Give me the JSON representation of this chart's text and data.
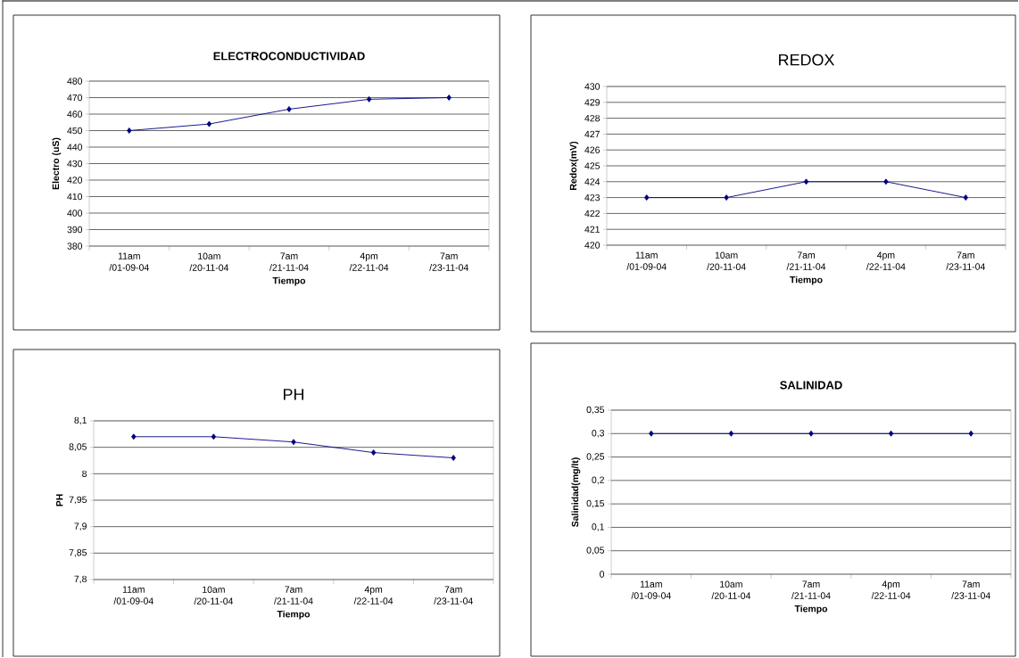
{
  "chart_data": [
    {
      "type": "line",
      "title": "ELECTROCONDUCTIVIDAD",
      "xlabel": "Tiempo",
      "ylabel": "Electro (uS)",
      "categories": [
        "11am /01-09-04",
        "10am /20-11-04",
        "7am /21-11-04",
        "4pm /22-11-04",
        "7am /23-11-04"
      ],
      "series": [
        {
          "color": "#000080",
          "values": [
            450,
            454,
            463,
            469,
            470
          ]
        }
      ],
      "ylim": [
        380,
        480
      ],
      "yticks": [
        380,
        390,
        400,
        410,
        420,
        430,
        440,
        450,
        460,
        470,
        480
      ],
      "grid": "y",
      "marker": "diamond"
    },
    {
      "type": "line",
      "title": "REDOX",
      "xlabel": "Tiempo",
      "ylabel": "Redox(mV)",
      "categories": [
        "11am /01-09-04",
        "10am /20-11-04",
        "7am /21-11-04",
        "4pm /22-11-04",
        "7am /23-11-04"
      ],
      "series": [
        {
          "color": "#000080",
          "values": [
            423,
            423,
            424,
            424,
            423
          ]
        }
      ],
      "ylim": [
        420,
        430
      ],
      "yticks": [
        420,
        421,
        422,
        423,
        424,
        425,
        426,
        427,
        428,
        429,
        430
      ],
      "grid": "y",
      "marker": "diamond"
    },
    {
      "type": "line",
      "title": "PH",
      "xlabel": "Tiempo",
      "ylabel": "PH",
      "categories": [
        "11am /01-09-04",
        "10am /20-11-04",
        "7am /21-11-04",
        "4pm /22-11-04",
        "7am /23-11-04"
      ],
      "series": [
        {
          "color": "#000080",
          "values": [
            8.07,
            8.07,
            8.06,
            8.04,
            8.03
          ]
        }
      ],
      "ylim": [
        7.8,
        8.1
      ],
      "yticks": [
        {
          "value": 7.8,
          "label": "7,8"
        },
        {
          "value": 7.85,
          "label": "7,85"
        },
        {
          "value": 7.9,
          "label": "7,9"
        },
        {
          "value": 7.95,
          "label": "7,95"
        },
        {
          "value": 8,
          "label": "8"
        },
        {
          "value": 8.05,
          "label": "8,05"
        },
        {
          "value": 8.1,
          "label": "8,1"
        }
      ],
      "grid": "y",
      "marker": "diamond"
    },
    {
      "type": "line",
      "title": "SALINIDAD",
      "xlabel": "Tiempo",
      "ylabel": "Salinidad(mg/lt)",
      "categories": [
        "11am /01-09-04",
        "10am /20-11-04",
        "7am /21-11-04",
        "4pm /22-11-04",
        "7am /23-11-04"
      ],
      "series": [
        {
          "color": "#000080",
          "values": [
            0.3,
            0.3,
            0.3,
            0.3,
            0.3
          ]
        }
      ],
      "ylim": [
        0,
        0.35
      ],
      "yticks": [
        {
          "value": 0,
          "label": "0"
        },
        {
          "value": 0.05,
          "label": "0,05"
        },
        {
          "value": 0.1,
          "label": "0,1"
        },
        {
          "value": 0.15,
          "label": "0,15"
        },
        {
          "value": 0.2,
          "label": "0,2"
        },
        {
          "value": 0.25,
          "label": "0,25"
        },
        {
          "value": 0.3,
          "label": "0,3"
        },
        {
          "value": 0.35,
          "label": "0,35"
        }
      ],
      "grid": "y",
      "marker": "diamond"
    }
  ]
}
